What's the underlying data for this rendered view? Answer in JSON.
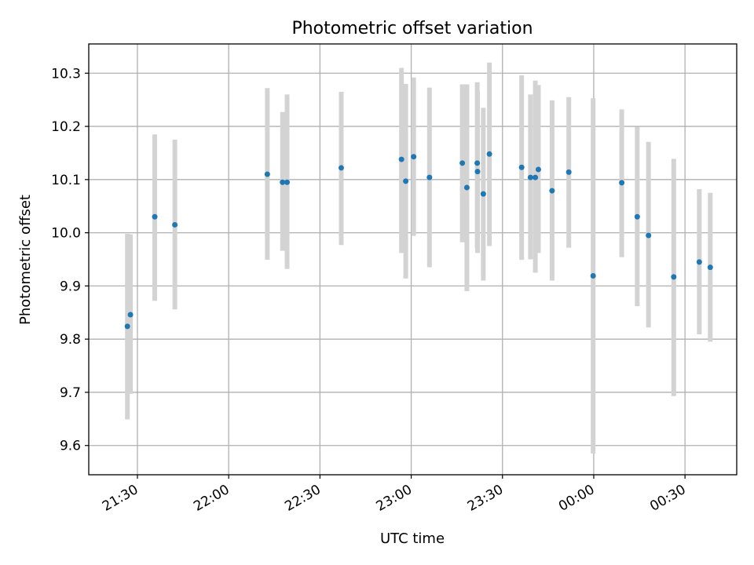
{
  "chart_data": {
    "type": "scatter",
    "title": "Photometric offset variation",
    "xlabel": "UTC time",
    "ylabel": "Photometric offset",
    "x_unit": "UTC time (HH:MM)",
    "xlim": [
      "21:14",
      "00:47"
    ],
    "ylim": [
      9.545,
      10.355
    ],
    "grid": true,
    "xticks": [
      {
        "time": "21:30",
        "label": "21:30"
      },
      {
        "time": "22:00",
        "label": "22:00"
      },
      {
        "time": "22:30",
        "label": "22:30"
      },
      {
        "time": "23:00",
        "label": "23:00"
      },
      {
        "time": "23:30",
        "label": "23:30"
      },
      {
        "time": "00:00",
        "label": "00:00"
      },
      {
        "time": "00:30",
        "label": "00:30"
      }
    ],
    "yticks": [
      {
        "value": 9.6,
        "label": "9.6"
      },
      {
        "value": 9.7,
        "label": "9.7"
      },
      {
        "value": 9.8,
        "label": "9.8"
      },
      {
        "value": 9.9,
        "label": "9.9"
      },
      {
        "value": 10.0,
        "label": "10.0"
      },
      {
        "value": 10.1,
        "label": "10.1"
      },
      {
        "value": 10.2,
        "label": "10.2"
      },
      {
        "value": 10.3,
        "label": "10.3"
      }
    ],
    "colors": {
      "marker": "#1f77b4",
      "errorbar": "#d3d3d3",
      "grid": "#b0b0b0"
    },
    "series": [
      {
        "points": [
          {
            "x": "21:26:42",
            "y": 9.824,
            "ylow": 9.649,
            "yhigh": 9.998
          },
          {
            "x": "21:27:42",
            "y": 9.846,
            "ylow": 9.697,
            "yhigh": 9.997
          },
          {
            "x": "21:35:42",
            "y": 10.03,
            "ylow": 9.872,
            "yhigh": 10.185
          },
          {
            "x": "21:42:18",
            "y": 10.015,
            "ylow": 9.856,
            "yhigh": 10.175
          },
          {
            "x": "22:12:42",
            "y": 10.11,
            "ylow": 9.949,
            "yhigh": 10.272
          },
          {
            "x": "22:17:42",
            "y": 10.095,
            "ylow": 9.966,
            "yhigh": 10.227
          },
          {
            "x": "22:19:12",
            "y": 10.095,
            "ylow": 9.932,
            "yhigh": 10.26
          },
          {
            "x": "22:37:00",
            "y": 10.122,
            "ylow": 9.977,
            "yhigh": 10.265
          },
          {
            "x": "22:56:48",
            "y": 10.138,
            "ylow": 9.962,
            "yhigh": 10.31
          },
          {
            "x": "22:58:12",
            "y": 10.097,
            "ylow": 9.914,
            "yhigh": 10.28
          },
          {
            "x": "23:00:48",
            "y": 10.143,
            "ylow": 9.994,
            "yhigh": 10.292
          },
          {
            "x": "23:06:00",
            "y": 10.104,
            "ylow": 9.935,
            "yhigh": 10.273
          },
          {
            "x": "23:16:48",
            "y": 10.131,
            "ylow": 9.982,
            "yhigh": 10.279
          },
          {
            "x": "23:18:18",
            "y": 10.085,
            "ylow": 9.89,
            "yhigh": 10.279
          },
          {
            "x": "23:21:48",
            "y": 10.115,
            "ylow": 9.962,
            "yhigh": 10.266
          },
          {
            "x": "23:21:42",
            "y": 10.131,
            "ylow": 9.972,
            "yhigh": 10.283
          },
          {
            "x": "23:23:42",
            "y": 10.073,
            "ylow": 9.91,
            "yhigh": 10.235
          },
          {
            "x": "23:25:42",
            "y": 10.148,
            "ylow": 9.975,
            "yhigh": 10.32
          },
          {
            "x": "23:36:18",
            "y": 10.123,
            "ylow": 9.949,
            "yhigh": 10.296
          },
          {
            "x": "23:39:12",
            "y": 10.104,
            "ylow": 9.95,
            "yhigh": 10.26
          },
          {
            "x": "23:40:48",
            "y": 10.104,
            "ylow": 9.925,
            "yhigh": 10.286
          },
          {
            "x": "23:41:48",
            "y": 10.119,
            "ylow": 9.962,
            "yhigh": 10.278
          },
          {
            "x": "23:46:18",
            "y": 10.079,
            "ylow": 9.91,
            "yhigh": 10.249
          },
          {
            "x": "23:51:48",
            "y": 10.114,
            "ylow": 9.972,
            "yhigh": 10.255
          },
          {
            "x": "23:59:48",
            "y": 9.919,
            "ylow": 9.585,
            "yhigh": 10.253
          },
          {
            "x": "00:09:12",
            "y": 10.094,
            "ylow": 9.954,
            "yhigh": 10.232
          },
          {
            "x": "00:14:18",
            "y": 10.03,
            "ylow": 9.862,
            "yhigh": 10.199
          },
          {
            "x": "00:18:00",
            "y": 9.995,
            "ylow": 9.822,
            "yhigh": 10.171
          },
          {
            "x": "00:26:18",
            "y": 9.917,
            "ylow": 9.693,
            "yhigh": 10.139
          },
          {
            "x": "00:34:42",
            "y": 9.945,
            "ylow": 9.809,
            "yhigh": 10.082
          },
          {
            "x": "00:38:18",
            "y": 9.935,
            "ylow": 9.795,
            "yhigh": 10.075
          }
        ]
      }
    ]
  }
}
